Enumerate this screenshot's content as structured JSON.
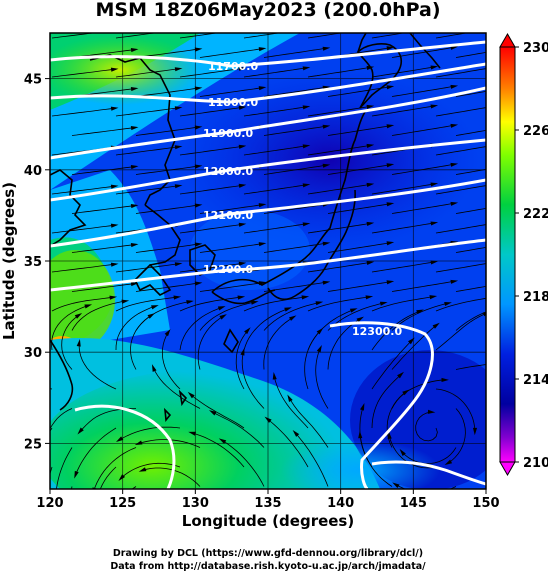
{
  "title": "MSM 18Z06May2023 (200.0hPa)",
  "map": {
    "x_label": "Longitude (degrees)",
    "y_label": "Latitude  (degrees)",
    "lon_range": [
      120,
      150
    ],
    "lat_range": [
      22.5,
      47.5
    ],
    "lon_ticks": [
      "120",
      "125",
      "130",
      "135",
      "140",
      "145",
      "150"
    ],
    "lat_ticks": [
      "25",
      "30",
      "35",
      "40",
      "45"
    ],
    "grid": true
  },
  "colorbar": {
    "min": 210,
    "max": 230,
    "tick_labels": [
      "230",
      "226",
      "222",
      "218",
      "214",
      "210"
    ],
    "colors": [
      "#ff0000",
      "#ff8000",
      "#ffff00",
      "#80ff00",
      "#00d040",
      "#00c8c8",
      "#0096ff",
      "#0020e0",
      "#0000a0",
      "#6000c0",
      "#ff00ff"
    ]
  },
  "contours": [
    {
      "label": "11700.0"
    },
    {
      "label": "11800.0"
    },
    {
      "label": "11900.0"
    },
    {
      "label": "12000.0"
    },
    {
      "label": "12100.0"
    },
    {
      "label": "12200.0"
    },
    {
      "label": "12300.0"
    }
  ],
  "credits": {
    "line1": "Drawing by DCL (https://www.gfd-dennou.org/library/dcl/)",
    "line2": "Data from http://database.rish.kyoto-u.ac.jp/arch/jmadata/"
  }
}
